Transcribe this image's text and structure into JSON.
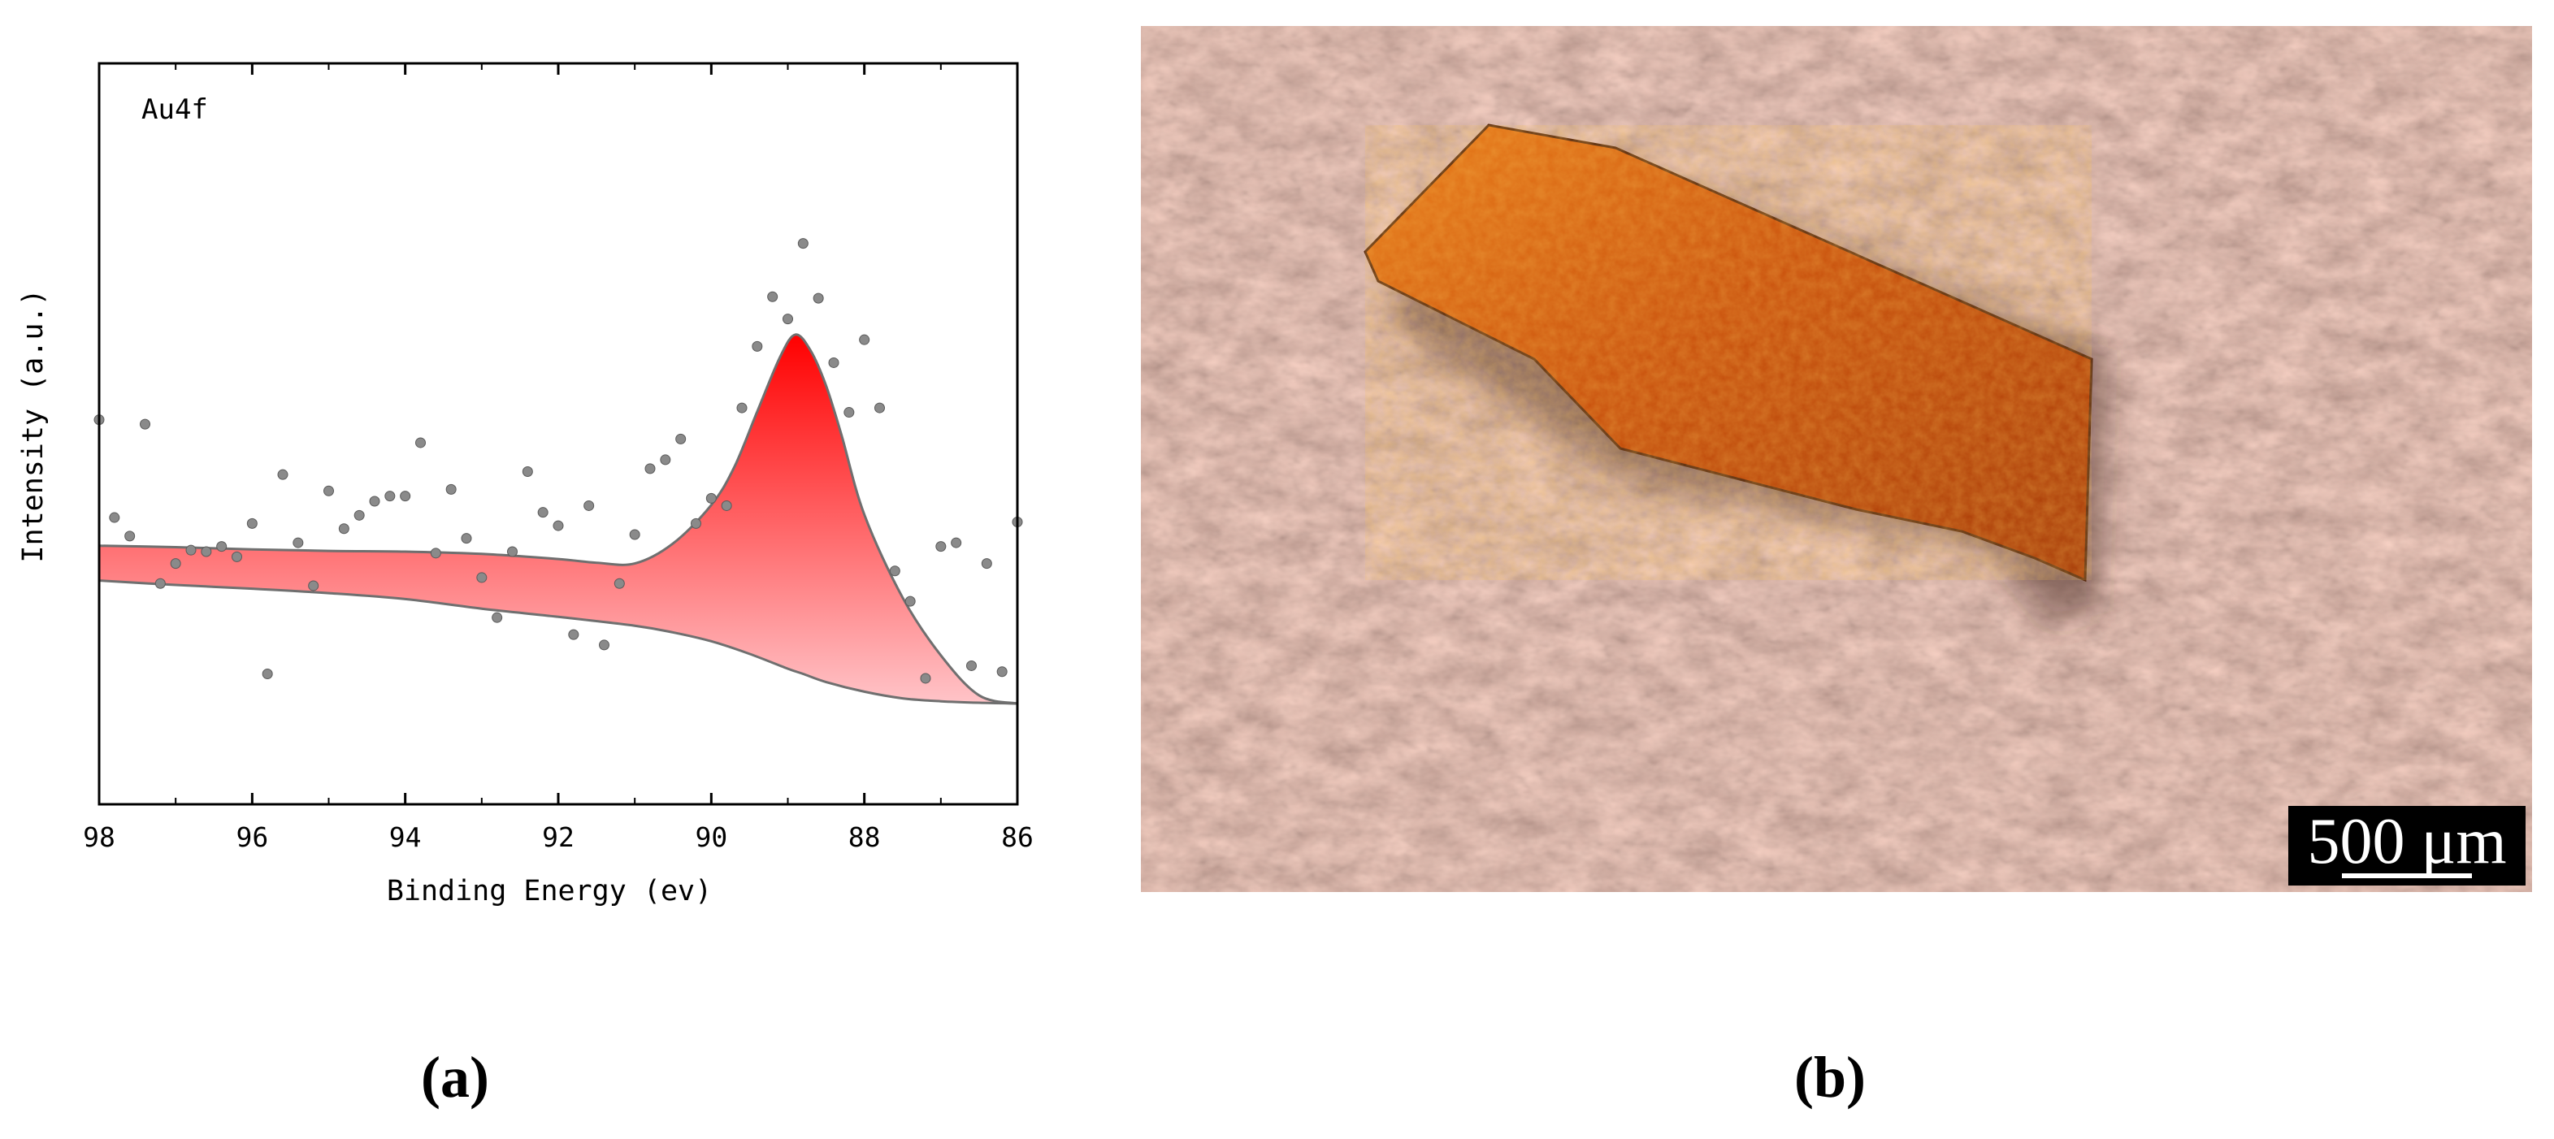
{
  "chart_data": {
    "type": "scatter",
    "annotation": "Au4f",
    "xlabel": "Binding Energy (ev)",
    "ylabel": "Intensity (a.u.)",
    "xlim": [
      98,
      86
    ],
    "ylim": [
      0,
      100
    ],
    "x_reversed": true,
    "x_ticks": [
      98,
      96,
      94,
      92,
      90,
      88,
      86
    ],
    "y_ticks_shown": false,
    "grid": false,
    "colors": {
      "fill_top": "#ff0000",
      "fill_bottom": "#ffc4c8",
      "points": "#8a8a8a",
      "envelope": "#6f6f6f"
    },
    "series": [
      {
        "kind": "fitted-envelope-upper",
        "x": [
          98,
          97,
          96,
          95,
          94,
          93,
          92,
          91.5,
          91,
          90.5,
          90,
          89.7,
          89.4,
          89.1,
          88.9,
          88.7,
          88.5,
          88.3,
          88,
          87.5,
          87,
          86.5,
          86
        ],
        "y": [
          34.9,
          34.7,
          34.4,
          34.2,
          34.1,
          33.8,
          33.1,
          32.6,
          32.5,
          35.2,
          40.4,
          45.5,
          53.0,
          60.4,
          63.4,
          61.2,
          56.5,
          49.9,
          39.1,
          27.9,
          20.1,
          14.7,
          13.6
        ]
      },
      {
        "kind": "fitted-envelope-lower",
        "x": [
          98,
          97,
          96,
          95,
          94,
          93,
          92,
          91,
          90.5,
          90,
          89.5,
          89,
          88.8,
          88.5,
          88,
          87.5,
          87,
          86.5,
          86
        ],
        "y": [
          30.2,
          29.6,
          29.1,
          28.5,
          27.7,
          26.4,
          25.3,
          24.1,
          23.2,
          22.0,
          20.3,
          18.3,
          17.6,
          16.5,
          15.2,
          14.3,
          13.9,
          13.7,
          13.6
        ]
      },
      {
        "kind": "data-points",
        "x": [
          98.0,
          97.8,
          97.6,
          97.4,
          97.2,
          97.0,
          96.8,
          96.6,
          96.4,
          96.2,
          96.0,
          95.8,
          95.6,
          95.4,
          95.2,
          95.0,
          94.8,
          94.6,
          94.4,
          94.2,
          94.0,
          93.8,
          93.6,
          93.4,
          93.2,
          93.0,
          92.8,
          92.6,
          92.4,
          92.2,
          92.0,
          91.8,
          91.6,
          91.4,
          91.2,
          91.0,
          90.8,
          90.6,
          90.4,
          90.2,
          90.0,
          89.8,
          89.6,
          89.4,
          89.2,
          89.0,
          88.8,
          88.6,
          88.4,
          88.2,
          88.0,
          87.8,
          87.6,
          87.4,
          87.2,
          87.0,
          86.8,
          86.6,
          86.4,
          86.2,
          86.0
        ],
        "y": [
          51.9,
          38.7,
          36.2,
          51.3,
          29.8,
          32.5,
          34.3,
          34.1,
          34.8,
          33.4,
          37.9,
          17.6,
          44.5,
          35.3,
          29.5,
          42.3,
          37.2,
          39.0,
          40.9,
          41.6,
          41.6,
          48.8,
          33.9,
          42.5,
          35.9,
          30.6,
          25.2,
          34.1,
          44.9,
          39.4,
          37.6,
          22.9,
          40.3,
          21.5,
          29.8,
          36.4,
          45.3,
          46.5,
          49.3,
          37.9,
          41.3,
          40.3,
          53.5,
          61.8,
          68.5,
          65.5,
          75.7,
          68.3,
          59.6,
          52.9,
          62.7,
          53.5,
          31.5,
          27.4,
          17.0,
          34.8,
          35.3,
          18.7,
          32.5,
          17.9,
          38.1
        ]
      }
    ]
  },
  "figure": {
    "panel_a_label": "(a)",
    "panel_b_label": "(b)",
    "scale_bar_text": "500 μm"
  }
}
